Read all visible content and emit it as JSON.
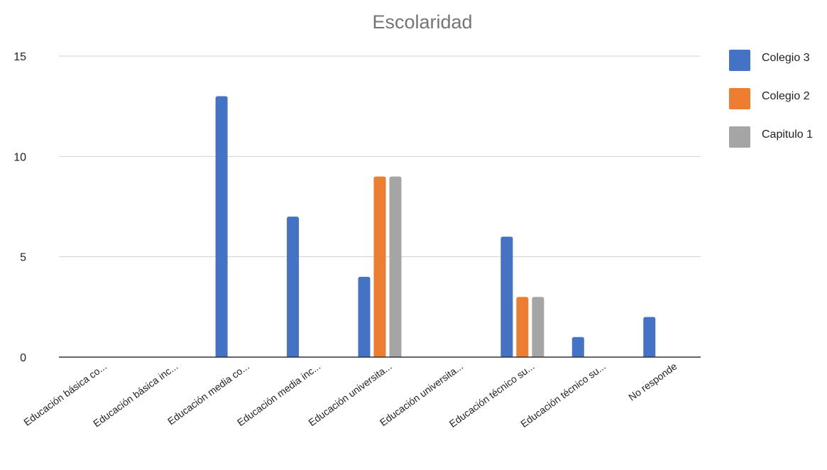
{
  "chart_data": {
    "type": "bar",
    "title": "Escolaridad",
    "xlabel": "",
    "ylabel": "",
    "ylim": [
      0,
      15
    ],
    "yticks": [
      0,
      5,
      10,
      15
    ],
    "grid": true,
    "legend_position": "right",
    "categories": [
      "Educación básica co...",
      "Educación básica inc...",
      "Educación media co...",
      "Educación media inc...",
      "Educación universita...",
      "Educación universita...",
      "Educación técnico su...",
      "Educación técnico su...",
      "No responde"
    ],
    "series": [
      {
        "name": "Colegio 3",
        "color": "#4472c4",
        "values": [
          0,
          0,
          13,
          7,
          4,
          0,
          6,
          1,
          2
        ]
      },
      {
        "name": "Colegio 2",
        "color": "#ed7d31",
        "values": [
          0,
          0,
          0,
          0,
          9,
          0,
          3,
          0,
          0
        ]
      },
      {
        "name": "Capitulo 1",
        "color": "#a5a5a5",
        "values": [
          0,
          0,
          0,
          0,
          9,
          0,
          3,
          0,
          0
        ]
      }
    ]
  }
}
